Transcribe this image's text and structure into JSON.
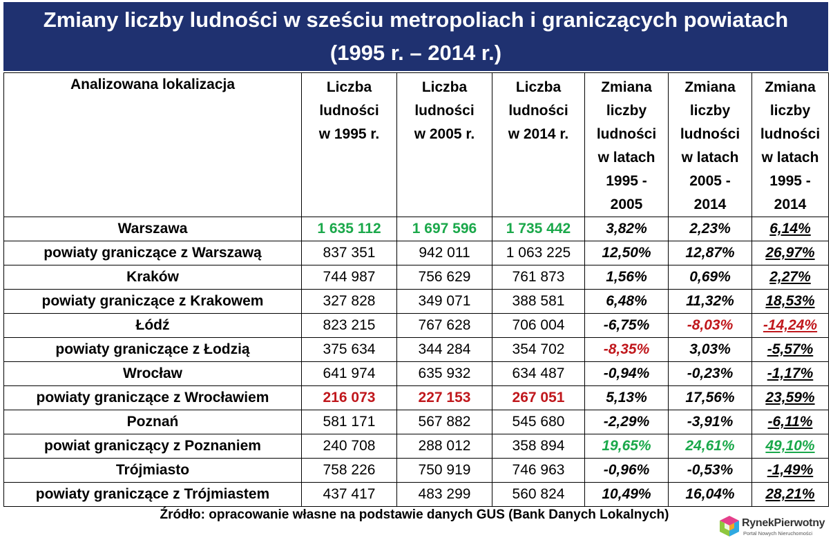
{
  "title": "Zmiany liczby ludności w sześciu metropoliach i graniczących powiatach (1995 r. – 2014 r.)",
  "columns": {
    "location": "Analizowana lokalizacja",
    "pop1995": [
      "Liczba",
      "ludności",
      "w 1995 r."
    ],
    "pop2005": [
      "Liczba",
      "ludności",
      "w 2005 r."
    ],
    "pop2014": [
      "Liczba",
      "ludności",
      "w 2014 r."
    ],
    "chg9505": [
      "Zmiana",
      "liczby",
      "ludności",
      "w latach",
      "1995 -",
      "2005"
    ],
    "chg0514": [
      "Zmiana",
      "liczby",
      "ludności",
      "w latach",
      "2005 -",
      "2014"
    ],
    "chg9514": [
      "Zmiana",
      "liczby",
      "ludności",
      "w latach",
      "1995 -",
      "2014"
    ]
  },
  "chart_data": {
    "type": "table",
    "title": "Zmiany liczby ludności w sześciu metropoliach i graniczących powiatach (1995 r. – 2014 r.)",
    "rows": [
      {
        "name": "Warszawa",
        "p1995": "1 635 112",
        "p2005": "1 697 596",
        "p2014": "1 735 442",
        "c1": "3,82%",
        "c2": "2,23%",
        "c3": "6,14%",
        "popColor": "green",
        "c1Color": "",
        "c2Color": "",
        "c3Color": ""
      },
      {
        "name": "powiaty graniczące z Warszawą",
        "p1995": "837 351",
        "p2005": "942 011",
        "p2014": "1 063 225",
        "c1": "12,50%",
        "c2": "12,87%",
        "c3": "26,97%",
        "popColor": "",
        "c1Color": "",
        "c2Color": "",
        "c3Color": ""
      },
      {
        "name": "Kraków",
        "p1995": "744 987",
        "p2005": "756 629",
        "p2014": "761 873",
        "c1": "1,56%",
        "c2": "0,69%",
        "c3": "2,27%",
        "popColor": "",
        "c1Color": "",
        "c2Color": "",
        "c3Color": ""
      },
      {
        "name": "powiaty graniczące z Krakowem",
        "p1995": "327 828",
        "p2005": "349 071",
        "p2014": "388 581",
        "c1": "6,48%",
        "c2": "11,32%",
        "c3": "18,53%",
        "popColor": "",
        "c1Color": "",
        "c2Color": "",
        "c3Color": ""
      },
      {
        "name": "Łódź",
        "p1995": "823 215",
        "p2005": "767 628",
        "p2014": "706 004",
        "c1": "-6,75%",
        "c2": "-8,03%",
        "c3": "-14,24%",
        "popColor": "",
        "c1Color": "",
        "c2Color": "red",
        "c3Color": "red"
      },
      {
        "name": "powiaty graniczące z Łodzią",
        "p1995": "375 634",
        "p2005": "344 284",
        "p2014": "354 702",
        "c1": "-8,35%",
        "c2": "3,03%",
        "c3": "-5,57%",
        "popColor": "",
        "c1Color": "red",
        "c2Color": "",
        "c3Color": ""
      },
      {
        "name": "Wrocław",
        "p1995": "641 974",
        "p2005": "635 932",
        "p2014": "634 487",
        "c1": "-0,94%",
        "c2": "-0,23%",
        "c3": "-1,17%",
        "popColor": "",
        "c1Color": "",
        "c2Color": "",
        "c3Color": ""
      },
      {
        "name": "powiaty graniczące z Wrocławiem",
        "p1995": "216 073",
        "p2005": "227 153",
        "p2014": "267 051",
        "c1": "5,13%",
        "c2": "17,56%",
        "c3": "23,59%",
        "popColor": "red",
        "c1Color": "",
        "c2Color": "",
        "c3Color": ""
      },
      {
        "name": "Poznań",
        "p1995": "581 171",
        "p2005": "567 882",
        "p2014": "545 680",
        "c1": "-2,29%",
        "c2": "-3,91%",
        "c3": "-6,11%",
        "popColor": "",
        "c1Color": "",
        "c2Color": "",
        "c3Color": ""
      },
      {
        "name": "powiat graniczący z Poznaniem",
        "p1995": "240 708",
        "p2005": "288 012",
        "p2014": "358 894",
        "c1": "19,65%",
        "c2": "24,61%",
        "c3": "49,10%",
        "popColor": "",
        "c1Color": "green",
        "c2Color": "green",
        "c3Color": "green"
      },
      {
        "name": "Trójmiasto",
        "p1995": "758 226",
        "p2005": "750 919",
        "p2014": "746 963",
        "c1": "-0,96%",
        "c2": "-0,53%",
        "c3": "-1,49%",
        "popColor": "",
        "c1Color": "",
        "c2Color": "",
        "c3Color": ""
      },
      {
        "name": "powiaty graniczące z Trójmiastem",
        "p1995": "437 417",
        "p2005": "483 299",
        "p2014": "560 824",
        "c1": "10,49%",
        "c2": "16,04%",
        "c3": "28,21%",
        "popColor": "",
        "c1Color": "",
        "c2Color": "",
        "c3Color": ""
      }
    ]
  },
  "colors": {
    "header": "#1f3170",
    "green": "#1aa84a",
    "red": "#c0171c"
  },
  "source": "Źródło: opracowanie własne na podstawie danych GUS (Bank Danych Lokalnych)",
  "logo": {
    "name": "RynekPierwotny",
    "sub": "Portal Nowych Nieruchomości"
  }
}
